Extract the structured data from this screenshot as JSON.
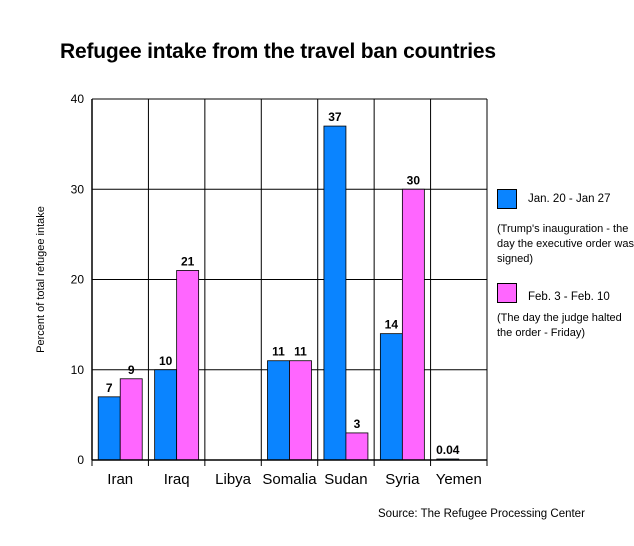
{
  "title": "Refugee intake from the travel ban countries",
  "source": "Source: The Refugee Processing Center",
  "chart_data": {
    "type": "bar",
    "title": "Refugee intake from the travel ban countries",
    "xlabel": "",
    "ylabel": "Percent of total refugee intake",
    "ylim": [
      0,
      40
    ],
    "yticks": [
      0,
      10,
      20,
      30,
      40
    ],
    "grid": true,
    "legend_position": "right",
    "categories": [
      "Iran",
      "Iraq",
      "Libya",
      "Somalia",
      "Sudan",
      "Syria",
      "Yemen"
    ],
    "series": [
      {
        "name": "Jan. 20 - Jan 27",
        "note": "(Trump's inauguration - the day the executive order was signed)",
        "color": "#0a84ff",
        "values": [
          7,
          10,
          null,
          11,
          37,
          14,
          0.04
        ],
        "labels": [
          "7",
          "10",
          "",
          "11",
          "37",
          "14",
          "0.04"
        ]
      },
      {
        "name": "Feb. 3 - Feb. 10",
        "note": "(The day the judge halted the order - Friday)",
        "color": "#ff66ff",
        "values": [
          9,
          21,
          null,
          11,
          3,
          30,
          null
        ],
        "labels": [
          "9",
          "21",
          "",
          "11",
          "3",
          "30",
          ""
        ]
      }
    ]
  }
}
